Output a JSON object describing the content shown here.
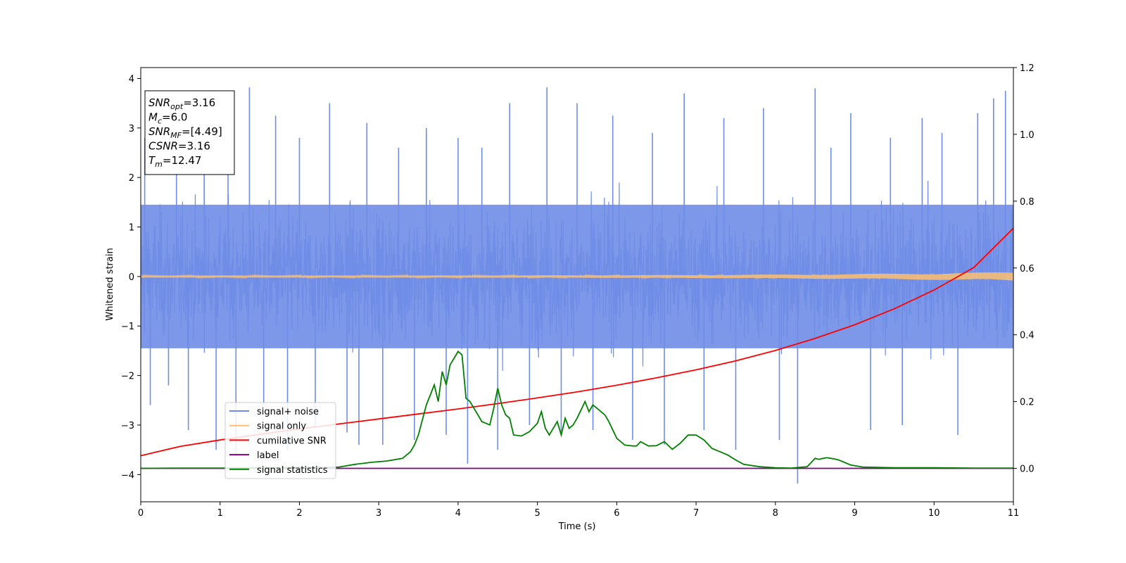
{
  "chart_data": {
    "type": "line",
    "xlabel": "Time (s)",
    "ylabel": "Whitened strain",
    "xlim": [
      0,
      11
    ],
    "ylim_left": [
      -4.55,
      4.22
    ],
    "ylim_right": [
      -0.1,
      1.2
    ],
    "x_ticks": [
      "0",
      "1",
      "2",
      "3",
      "4",
      "5",
      "6",
      "7",
      "8",
      "9",
      "10",
      "11"
    ],
    "y_ticks_left": [
      "4",
      "3",
      "2",
      "1",
      "0",
      "−1",
      "−2",
      "−3",
      "−4"
    ],
    "y_ticks_right": [
      "1.2",
      "1.0",
      "0.8",
      "0.6",
      "0.4",
      "0.2",
      "0.0"
    ],
    "grid": false,
    "legend_position": "lower-left",
    "info_box": [
      {
        "main": "SNR",
        "sub": "opt",
        "rest": "=3.16"
      },
      {
        "main": "M",
        "sub": "c",
        "rest": "=6.0"
      },
      {
        "main": "SNR",
        "sub": "MF",
        "rest": "=[4.49]"
      },
      {
        "main": "CSNR",
        "sub": "",
        "rest": "=3.16"
      },
      {
        "main": "T",
        "sub": "m",
        "rest": "=12.47"
      }
    ],
    "series": [
      {
        "name": "signal+ noise",
        "color": "#6f8de6",
        "axis": "left",
        "kind": "noise_band",
        "typical_range": [
          -1.8,
          1.8
        ],
        "spikes": [
          {
            "x": 0.05,
            "y": 2.8
          },
          {
            "x": 0.12,
            "y": -2.6
          },
          {
            "x": 0.35,
            "y": -2.2
          },
          {
            "x": 0.45,
            "y": 2.6
          },
          {
            "x": 0.6,
            "y": -3.1
          },
          {
            "x": 0.8,
            "y": 2.8
          },
          {
            "x": 0.95,
            "y": -3.5
          },
          {
            "x": 1.1,
            "y": 3.2
          },
          {
            "x": 1.2,
            "y": -3.6
          },
          {
            "x": 1.37,
            "y": 3.82
          },
          {
            "x": 1.55,
            "y": -2.6
          },
          {
            "x": 1.7,
            "y": 3.25
          },
          {
            "x": 1.85,
            "y": -3.5
          },
          {
            "x": 2.0,
            "y": 2.8
          },
          {
            "x": 2.2,
            "y": -3.05
          },
          {
            "x": 2.38,
            "y": 3.5
          },
          {
            "x": 2.6,
            "y": -3.15
          },
          {
            "x": 2.75,
            "y": -3.4
          },
          {
            "x": 2.85,
            "y": 3.1
          },
          {
            "x": 3.05,
            "y": -3.4
          },
          {
            "x": 3.25,
            "y": 2.6
          },
          {
            "x": 3.45,
            "y": -3.3
          },
          {
            "x": 3.6,
            "y": 3.0
          },
          {
            "x": 3.85,
            "y": -3.2
          },
          {
            "x": 4.0,
            "y": 2.8
          },
          {
            "x": 4.12,
            "y": -3.78
          },
          {
            "x": 4.3,
            "y": 2.6
          },
          {
            "x": 4.5,
            "y": -3.5
          },
          {
            "x": 4.65,
            "y": 3.5
          },
          {
            "x": 4.9,
            "y": -3.0
          },
          {
            "x": 5.12,
            "y": 3.82
          },
          {
            "x": 5.3,
            "y": -3.2
          },
          {
            "x": 5.5,
            "y": 3.5
          },
          {
            "x": 5.7,
            "y": -3.1
          },
          {
            "x": 5.95,
            "y": 3.25
          },
          {
            "x": 6.2,
            "y": -3.3
          },
          {
            "x": 6.45,
            "y": 2.9
          },
          {
            "x": 6.6,
            "y": -3.4
          },
          {
            "x": 6.85,
            "y": 3.7
          },
          {
            "x": 7.1,
            "y": -3.1
          },
          {
            "x": 7.35,
            "y": 3.2
          },
          {
            "x": 7.5,
            "y": -3.5
          },
          {
            "x": 7.85,
            "y": 3.4
          },
          {
            "x": 8.05,
            "y": -3.3
          },
          {
            "x": 8.28,
            "y": -4.18
          },
          {
            "x": 8.5,
            "y": 3.8
          },
          {
            "x": 8.7,
            "y": 2.6
          },
          {
            "x": 8.95,
            "y": 3.3
          },
          {
            "x": 9.2,
            "y": -3.1
          },
          {
            "x": 9.45,
            "y": 2.8
          },
          {
            "x": 9.6,
            "y": -3.0
          },
          {
            "x": 9.85,
            "y": 3.2
          },
          {
            "x": 10.1,
            "y": 2.9
          },
          {
            "x": 10.3,
            "y": -3.2
          },
          {
            "x": 10.55,
            "y": 3.3
          },
          {
            "x": 10.75,
            "y": 3.6
          },
          {
            "x": 10.9,
            "y": 3.75
          }
        ]
      },
      {
        "name": "signal only",
        "color": "#fdbf6f",
        "axis": "left",
        "kind": "chirp",
        "amplitude_start": 0.02,
        "amplitude_end": 0.09
      },
      {
        "name": "cumilative SNR",
        "color": "#ff0000",
        "axis": "right",
        "kind": "line",
        "x": [
          0,
          0.5,
          1,
          1.5,
          2,
          2.5,
          3,
          3.5,
          4,
          4.5,
          5,
          5.5,
          6,
          6.5,
          7,
          7.5,
          8,
          8.5,
          9,
          9.5,
          10,
          10.5,
          11
        ],
        "y": [
          0.038,
          0.066,
          0.085,
          0.102,
          0.118,
          0.133,
          0.148,
          0.163,
          0.178,
          0.194,
          0.211,
          0.229,
          0.249,
          0.271,
          0.295,
          0.322,
          0.353,
          0.389,
          0.43,
          0.478,
          0.534,
          0.601,
          0.719
        ]
      },
      {
        "name": "label",
        "color": "#800080",
        "axis": "right",
        "kind": "line",
        "x": [
          0,
          11
        ],
        "y": [
          0.0,
          0.0
        ]
      },
      {
        "name": "signal statistics",
        "color": "#008000",
        "axis": "right",
        "kind": "line",
        "x": [
          0,
          0.5,
          1,
          1.5,
          2,
          2.5,
          2.7,
          2.9,
          3.1,
          3.3,
          3.4,
          3.45,
          3.5,
          3.6,
          3.7,
          3.75,
          3.8,
          3.85,
          3.9,
          3.95,
          4.0,
          4.05,
          4.1,
          4.15,
          4.25,
          4.3,
          4.4,
          4.45,
          4.5,
          4.55,
          4.6,
          4.65,
          4.7,
          4.8,
          4.9,
          5.0,
          5.05,
          5.1,
          5.15,
          5.25,
          5.3,
          5.35,
          5.4,
          5.45,
          5.5,
          5.6,
          5.65,
          5.7,
          5.75,
          5.85,
          5.9,
          6.0,
          6.1,
          6.2,
          6.25,
          6.3,
          6.4,
          6.5,
          6.6,
          6.7,
          6.8,
          6.9,
          7.0,
          7.1,
          7.2,
          7.3,
          7.4,
          7.5,
          7.6,
          7.8,
          8.0,
          8.2,
          8.4,
          8.5,
          8.55,
          8.6,
          8.65,
          8.7,
          8.75,
          8.8,
          8.85,
          8.95,
          9.1,
          9.5,
          10,
          10.5,
          11
        ],
        "y": [
          0.0,
          0.001,
          0.001,
          0.002,
          0.003,
          0.004,
          0.012,
          0.018,
          0.022,
          0.03,
          0.05,
          0.07,
          0.1,
          0.19,
          0.25,
          0.2,
          0.29,
          0.25,
          0.31,
          0.33,
          0.35,
          0.34,
          0.21,
          0.2,
          0.16,
          0.14,
          0.13,
          0.18,
          0.24,
          0.19,
          0.16,
          0.15,
          0.1,
          0.097,
          0.11,
          0.135,
          0.17,
          0.12,
          0.1,
          0.14,
          0.1,
          0.15,
          0.12,
          0.13,
          0.15,
          0.2,
          0.17,
          0.19,
          0.18,
          0.16,
          0.14,
          0.09,
          0.07,
          0.067,
          0.067,
          0.08,
          0.067,
          0.068,
          0.08,
          0.057,
          0.075,
          0.1,
          0.1,
          0.085,
          0.06,
          0.05,
          0.04,
          0.025,
          0.012,
          0.005,
          0.002,
          0.001,
          0.005,
          0.03,
          0.027,
          0.03,
          0.032,
          0.03,
          0.028,
          0.025,
          0.02,
          0.01,
          0.004,
          0.002,
          0.002,
          0.001,
          0.001
        ]
      }
    ]
  }
}
